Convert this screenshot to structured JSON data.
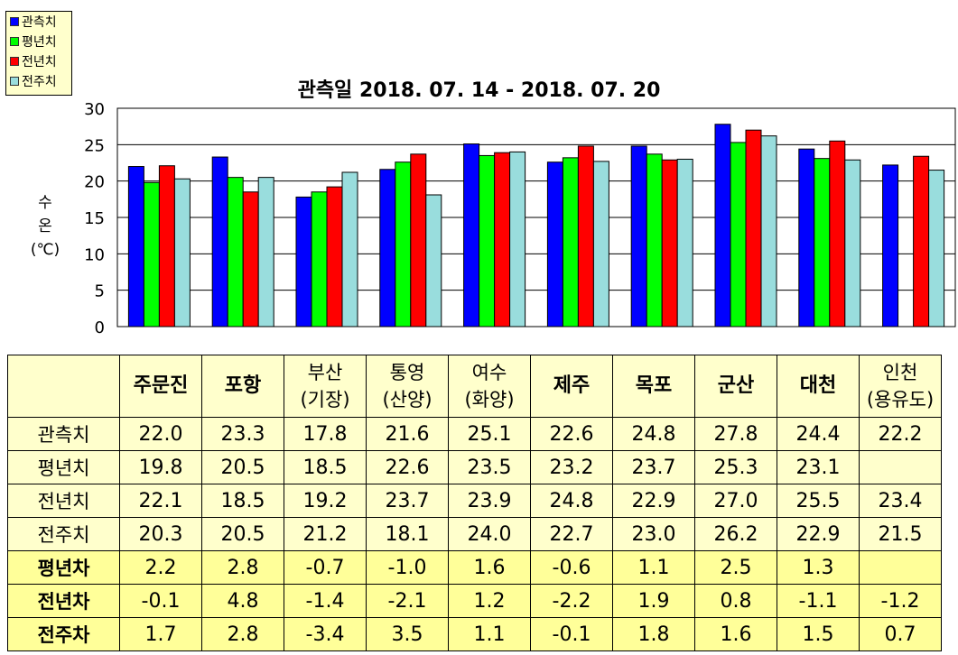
{
  "chart_data": {
    "type": "bar",
    "title": "관측일 2018. 07. 14 - 2018. 07. 20",
    "ylabel": [
      "수",
      "온",
      "(℃)"
    ],
    "ylim": [
      0,
      30
    ],
    "yticks": [
      0,
      5,
      10,
      15,
      20,
      25,
      30
    ],
    "grid": true,
    "legend_position": "top-left",
    "categories": [
      "주문진",
      "포항",
      "부산(기장)",
      "통영(산양)",
      "여수(화양)",
      "제주",
      "목포",
      "군산",
      "대천",
      "인천(용유도)"
    ],
    "series": [
      {
        "name": "관측치",
        "color": "#0000FF",
        "values": [
          22.0,
          23.3,
          17.8,
          21.6,
          25.1,
          22.6,
          24.8,
          27.8,
          24.4,
          22.2
        ]
      },
      {
        "name": "평년치",
        "color": "#00FF00",
        "values": [
          19.8,
          20.5,
          18.5,
          22.6,
          23.5,
          23.2,
          23.7,
          25.3,
          23.1,
          null
        ]
      },
      {
        "name": "전년치",
        "color": "#FF0000",
        "values": [
          22.1,
          18.5,
          19.2,
          23.7,
          23.9,
          24.8,
          22.9,
          27.0,
          25.5,
          23.4
        ]
      },
      {
        "name": "전주치",
        "color": "#99DDDD",
        "values": [
          20.3,
          20.5,
          21.2,
          18.1,
          24.0,
          22.7,
          23.0,
          26.2,
          22.9,
          21.5
        ]
      }
    ]
  },
  "table": {
    "headers": [
      [
        "주문진"
      ],
      [
        "포항"
      ],
      [
        "부산",
        "(기장)"
      ],
      [
        "통영",
        "(산양)"
      ],
      [
        "여수",
        "(화양)"
      ],
      [
        "제주"
      ],
      [
        "목포"
      ],
      [
        "군산"
      ],
      [
        "대천"
      ],
      [
        "인천",
        "(용유도)"
      ]
    ],
    "rows": [
      {
        "label": "관측치",
        "cells": [
          "22.0",
          "23.3",
          "17.8",
          "21.6",
          "25.1",
          "22.6",
          "24.8",
          "27.8",
          "24.4",
          "22.2"
        ]
      },
      {
        "label": "평년치",
        "cells": [
          "19.8",
          "20.5",
          "18.5",
          "22.6",
          "23.5",
          "23.2",
          "23.7",
          "25.3",
          "23.1",
          ""
        ]
      },
      {
        "label": "전년치",
        "cells": [
          "22.1",
          "18.5",
          "19.2",
          "23.7",
          "23.9",
          "24.8",
          "22.9",
          "27.0",
          "25.5",
          "23.4"
        ]
      },
      {
        "label": "전주치",
        "cells": [
          "20.3",
          "20.5",
          "21.2",
          "18.1",
          "24.0",
          "22.7",
          "23.0",
          "26.2",
          "22.9",
          "21.5"
        ]
      },
      {
        "label": "평년차",
        "cells": [
          "2.2",
          "2.8",
          "-0.7",
          "-1.0",
          "1.6",
          "-0.6",
          "1.1",
          "2.5",
          "1.3",
          ""
        ]
      },
      {
        "label": "전년차",
        "cells": [
          "-0.1",
          "4.8",
          "-1.4",
          "-2.1",
          "1.2",
          "-2.2",
          "1.9",
          "0.8",
          "-1.1",
          "-1.2"
        ]
      },
      {
        "label": "전주차",
        "cells": [
          "1.7",
          "2.8",
          "-3.4",
          "3.5",
          "1.1",
          "-0.1",
          "1.8",
          "1.6",
          "1.5",
          "0.7"
        ]
      }
    ]
  }
}
